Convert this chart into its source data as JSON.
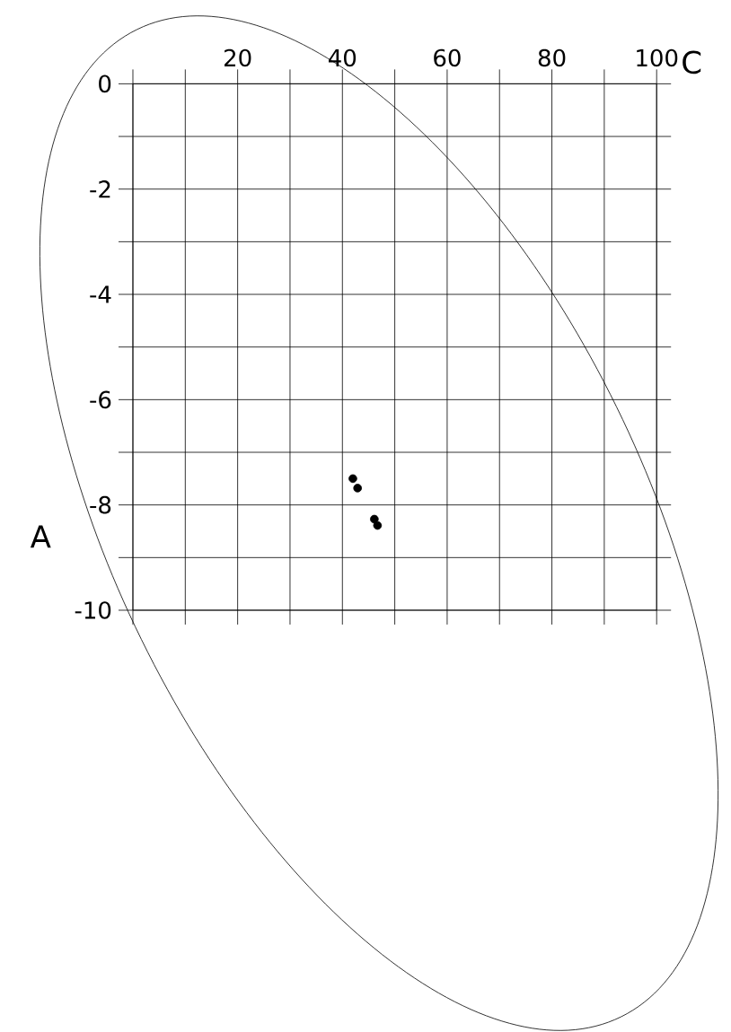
{
  "chart_data": {
    "type": "scatter",
    "xlabel": "C",
    "ylabel": "A",
    "xlim": [
      0,
      100
    ],
    "ylim": [
      -10,
      0
    ],
    "xticks": [
      {
        "value": 0,
        "label": null
      },
      {
        "value": 10,
        "label": null
      },
      20,
      {
        "value": 30,
        "label": null
      },
      40,
      {
        "value": 50,
        "label": null
      },
      60,
      {
        "value": 70,
        "label": null
      },
      80,
      {
        "value": 90,
        "label": null
      },
      100
    ],
    "yticks": [
      0,
      {
        "value": -1,
        "label": null
      },
      -2,
      {
        "value": -3,
        "label": null
      },
      -4,
      {
        "value": -5,
        "label": null
      },
      -6,
      {
        "value": -7,
        "label": null
      },
      -8,
      {
        "value": -9,
        "label": null
      },
      -10
    ],
    "grid": true,
    "marker": "circle",
    "series": [
      {
        "color": "#000000",
        "x": [
          42.0,
          42.9,
          46.1,
          46.7
        ],
        "values": [
          -7.5,
          -7.68,
          -8.27,
          -8.39
        ]
      }
    ]
  }
}
